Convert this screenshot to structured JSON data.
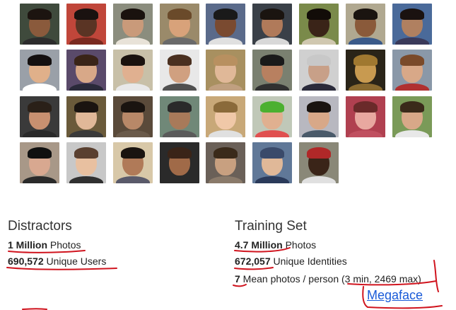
{
  "photos": [
    {
      "bg": "#3f4a3c",
      "skin": "#8a5a3c",
      "hair": "#1c1410",
      "shirt": "#2c2c2c"
    },
    {
      "bg": "#c0463a",
      "skin": "#5a3424",
      "hair": "#1a1210",
      "shirt": "#7a2a20"
    },
    {
      "bg": "#8b8d7e",
      "skin": "#c99a7a",
      "hair": "#1a120e",
      "shirt": "#e8e2d8"
    },
    {
      "bg": "#9a8a6a",
      "skin": "#d8a27a",
      "hair": "#6a4a2a",
      "shirt": "#6a6a6a"
    },
    {
      "bg": "#5a6a8a",
      "skin": "#7a4a30",
      "hair": "#1a1a1a",
      "shirt": "#e0e0e0"
    },
    {
      "bg": "#3a4048",
      "skin": "#b07a5a",
      "hair": "#1a1410",
      "shirt": "#d8d8d8"
    },
    {
      "bg": "#7a8a4a",
      "skin": "#3a2418",
      "hair": "#120c08",
      "shirt": "#d0c8b0"
    },
    {
      "bg": "#b0a890",
      "skin": "#8a5a3a",
      "hair": "#1a1410",
      "shirt": "#3a5a8a"
    },
    {
      "bg": "#4a6a9a",
      "skin": "#b08060",
      "hair": "#1a1210",
      "shirt": "#3a3a5a"
    },
    {
      "bg": "#9aa0a8",
      "skin": "#e0b08a",
      "hair": "#141010",
      "shirt": "#ffffff"
    },
    {
      "bg": "#5a4a6a",
      "skin": "#d8a888",
      "hair": "#3a2418",
      "shirt": "#2a2a3a"
    },
    {
      "bg": "#c8c0a8",
      "skin": "#e0b090",
      "hair": "#1a120e",
      "shirt": "#e8e8e8"
    },
    {
      "bg": "#e8e8e8",
      "skin": "#d0a080",
      "hair": "#4a3020",
      "shirt": "#505050"
    },
    {
      "bg": "#a89060",
      "skin": "#e0b898",
      "hair": "#b89060",
      "shirt": "#c0a080"
    },
    {
      "bg": "#7a8070",
      "skin": "#b88060",
      "hair": "#1a1a1a",
      "shirt": "#303030"
    },
    {
      "bg": "#d0d0d0",
      "skin": "#c8a088",
      "hair": "#c8c8c8",
      "shirt": "#2a2a3a"
    },
    {
      "bg": "#2a2418",
      "skin": "#c89a50",
      "hair": "#a07830",
      "shirt": "#8a6a30"
    },
    {
      "bg": "#8a98a8",
      "skin": "#d8a888",
      "hair": "#7a4a2a",
      "shirt": "#b03030"
    },
    {
      "bg": "#3a3a3a",
      "skin": "#c89070",
      "hair": "#2a2018",
      "shirt": "#2a2a2a"
    },
    {
      "bg": "#6a5a3a",
      "skin": "#e0b898",
      "hair": "#1a1410",
      "shirt": "#3a3a3a"
    },
    {
      "bg": "#5a4a3a",
      "skin": "#b88868",
      "hair": "#1a1410",
      "shirt": "#6a5a4a"
    },
    {
      "bg": "#708878",
      "skin": "#a87a5a",
      "hair": "#2a2a2a",
      "shirt": "#5a5a5a"
    },
    {
      "bg": "#c8a878",
      "skin": "#f0c8a8",
      "hair": "#8a6a3a",
      "shirt": "#e0e0e0"
    },
    {
      "bg": "#c0c8b8",
      "skin": "#e0b090",
      "hair": "#4cb030",
      "shirt": "#e05050"
    },
    {
      "bg": "#b8b8c0",
      "skin": "#d8a888",
      "hair": "#1a1410",
      "shirt": "#4a5a6a"
    },
    {
      "bg": "#b04050",
      "skin": "#e8a8a0",
      "hair": "#6a2a2a",
      "shirt": "#c05060"
    },
    {
      "bg": "#7a9a58",
      "skin": "#d8a888",
      "hair": "#3a2a1a",
      "shirt": "#e8e8e8"
    },
    {
      "bg": "#a89888",
      "skin": "#d8a890",
      "hair": "#101010",
      "shirt": "#2a2a2a"
    },
    {
      "bg": "#c8c8c8",
      "skin": "#e8c0a0",
      "hair": "#5a4030",
      "shirt": "#303030"
    },
    {
      "bg": "#d8c8a8",
      "skin": "#b07a58",
      "hair": "#1a1410",
      "shirt": "#5a5a6a"
    },
    {
      "bg": "#2a2a2a",
      "skin": "#a06a48",
      "hair": "#3a2418",
      "shirt": "#2a2a2a"
    },
    {
      "bg": "#6a6058",
      "skin": "#c8a080",
      "hair": "#3a2a1a",
      "shirt": "#8a7a6a"
    },
    {
      "bg": "#607898",
      "skin": "#e0b898",
      "hair": "#3a4a6a",
      "shirt": "#2a3a5a"
    },
    {
      "bg": "#8a8878",
      "skin": "#3a2418",
      "hair": "#b02828",
      "shirt": "#e0e0e0"
    }
  ],
  "distractors": {
    "title": "Distractors",
    "photos_bold": "1 Million",
    "photos_rest": " Photos",
    "users_bold": "690,572",
    "users_rest": " Unique Users"
  },
  "training": {
    "title": "Training Set",
    "photos_bold": "4.7 Million",
    "photos_rest": " Photos",
    "identities_bold": "672,057",
    "identities_rest": " Unique Identities",
    "mean_bold": "7",
    "mean_rest": " Mean photos / person (3 min, 2469 max)"
  },
  "link_label": "Megaface",
  "annotation_color": "#d0141e"
}
